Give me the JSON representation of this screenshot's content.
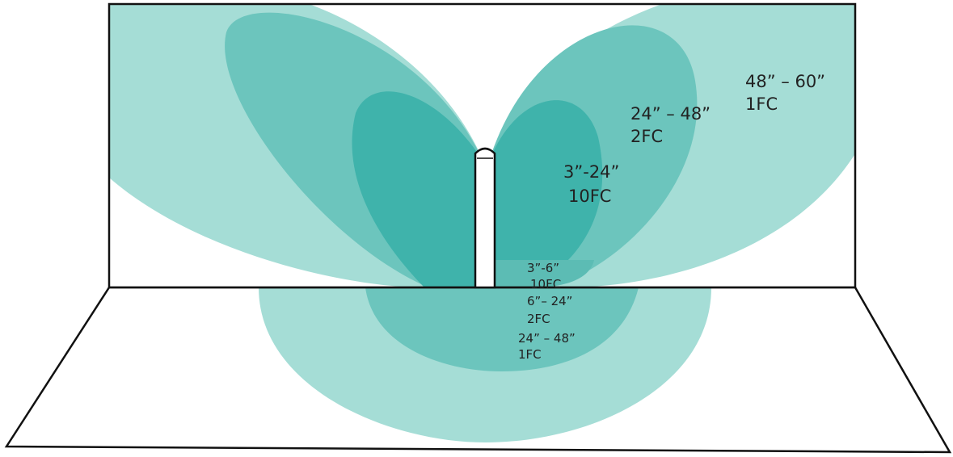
{
  "wall_zones": [
    {
      "range": "48” – 60”",
      "level": "1FC"
    },
    {
      "range": "24” – 48”",
      "level": "2FC"
    },
    {
      "range": "3”-24”",
      "level": "10FC"
    }
  ],
  "floor_zones": [
    {
      "range": "3”-6”",
      "level": "10FC"
    },
    {
      "range": "6”– 24”",
      "level": "2FC"
    },
    {
      "range": "24” – 48”",
      "level": "1FC"
    }
  ]
}
